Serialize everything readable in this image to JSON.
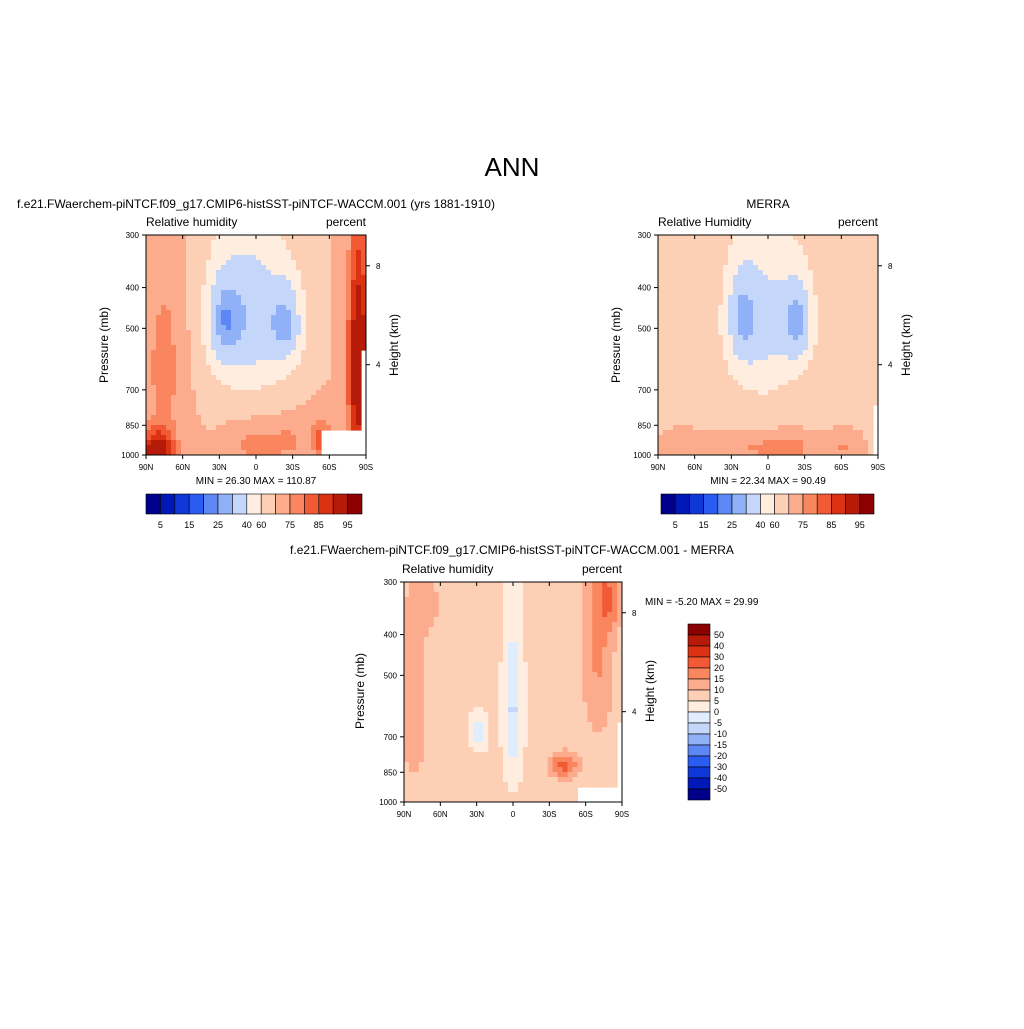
{
  "figure_title": "ANN",
  "palettes": {
    "rh": [
      "#00008b",
      "#0018b8",
      "#1038d8",
      "#2a5cf2",
      "#5c87f5",
      "#90b0f8",
      "#c4d7fb",
      "#ffeee0",
      "#fdcfb5",
      "#fcab8c",
      "#f9865e",
      "#f25a35",
      "#dc3214",
      "#b61a08",
      "#8b0000"
    ],
    "diff": [
      "#00008b",
      "#0018b8",
      "#1038d8",
      "#2a5cf2",
      "#5c87f5",
      "#90b0f8",
      "#c4d7fb",
      "#e0edfe",
      "#ffeee0",
      "#fdcfb5",
      "#fcab8c",
      "#f9865e",
      "#f25a35",
      "#dc3214",
      "#b61a08",
      "#8b0000"
    ]
  },
  "chart_data": [
    {
      "type": "heatmap",
      "id": "model",
      "title": "f.e21.FWaerchem-piNTCF.f09_g17.CMIP6-histSST-piNTCF-WACCM.001 (yrs 1881-1910)",
      "left_label": "Relative humidity",
      "right_label": "percent",
      "ylabel": "Pressure (mb)",
      "ylabel_right": "Height (km)",
      "x_ticks": [
        "90N",
        "60N",
        "30N",
        "0",
        "30S",
        "60S",
        "90S"
      ],
      "y_ticks": [
        "300",
        "400",
        "500",
        "700",
        "850",
        "1000"
      ],
      "y_right_ticks": [
        "8",
        "4"
      ],
      "xlim": [
        90,
        -90
      ],
      "ylim": [
        300,
        1000
      ],
      "stats": "MIN =  26.30  MAX = 110.87",
      "levels": [
        "5",
        "15",
        "25",
        "40",
        "60",
        "75",
        "85",
        "95"
      ],
      "features": {
        "base": 60,
        "blobs": [
          {
            "lat": 5,
            "p": 470,
            "slat": 32,
            "sp": 230,
            "a": -28
          },
          {
            "lat": 28,
            "p": 480,
            "slat": 14,
            "sp": 130,
            "a": -18
          },
          {
            "lat": -26,
            "p": 490,
            "slat": 14,
            "sp": 120,
            "a": -22
          },
          {
            "lat": 0,
            "p": 950,
            "slat": 22,
            "sp": 110,
            "a": 14
          },
          {
            "lat": -28,
            "p": 920,
            "slat": 14,
            "sp": 100,
            "a": 10
          },
          {
            "lat": 82,
            "p": 980,
            "slat": 18,
            "sp": 120,
            "a": 26
          },
          {
            "lat": 75,
            "p": 620,
            "slat": 16,
            "sp": 320,
            "a": 14
          },
          {
            "lat": -84,
            "p": 620,
            "slat": 10,
            "sp": 400,
            "a": 34
          },
          {
            "lat": -55,
            "p": 920,
            "slat": 12,
            "sp": 120,
            "a": 18
          }
        ],
        "mask": [
          {
            "lat0": -52,
            "lat1": -90,
            "p0": 880,
            "p1": 1000
          },
          {
            "lat0": -84,
            "lat1": -90,
            "p0": 560,
            "p1": 1000
          }
        ]
      }
    },
    {
      "type": "heatmap",
      "id": "obs",
      "title": "MERRA",
      "left_label": "Relative Humidity",
      "right_label": "percent",
      "ylabel": "Pressure (mb)",
      "ylabel_right": "Height (km)",
      "x_ticks": [
        "90N",
        "60N",
        "30N",
        "0",
        "30S",
        "60S",
        "90S"
      ],
      "y_ticks": [
        "300",
        "400",
        "500",
        "700",
        "850",
        "1000"
      ],
      "y_right_ticks": [
        "8",
        "4"
      ],
      "xlim": [
        90,
        -90
      ],
      "ylim": [
        300,
        1000
      ],
      "stats": "MIN =  22.34  MAX =  90.49",
      "levels": [
        "5",
        "15",
        "25",
        "40",
        "60",
        "75",
        "85",
        "95"
      ],
      "features": {
        "base": 58,
        "blobs": [
          {
            "lat": 5,
            "p": 480,
            "slat": 30,
            "sp": 230,
            "a": -22
          },
          {
            "lat": 22,
            "p": 470,
            "slat": 12,
            "sp": 120,
            "a": -16
          },
          {
            "lat": -25,
            "p": 480,
            "slat": 13,
            "sp": 120,
            "a": -24
          },
          {
            "lat": 0,
            "p": 960,
            "slat": 40,
            "sp": 80,
            "a": 14
          },
          {
            "lat": -22,
            "p": 960,
            "slat": 14,
            "sp": 70,
            "a": 6
          },
          {
            "lat": 70,
            "p": 960,
            "slat": 20,
            "sp": 80,
            "a": 10
          },
          {
            "lat": -62,
            "p": 960,
            "slat": 14,
            "sp": 80,
            "a": 12
          }
        ],
        "mask": [
          {
            "lat0": -85,
            "lat1": -90,
            "p0": 760,
            "p1": 1000
          }
        ]
      }
    },
    {
      "type": "heatmap",
      "id": "diff",
      "title": "f.e21.FWaerchem-piNTCF.f09_g17.CMIP6-histSST-piNTCF-WACCM.001 - MERRA",
      "left_label": "Relative humidity",
      "right_label": "percent",
      "ylabel": "Pressure (mb)",
      "ylabel_right": "Height (km)",
      "x_ticks": [
        "90N",
        "60N",
        "30N",
        "0",
        "30S",
        "60S",
        "90S"
      ],
      "y_ticks": [
        "300",
        "400",
        "500",
        "700",
        "850",
        "1000"
      ],
      "y_right_ticks": [
        "8",
        "4"
      ],
      "xlim": [
        90,
        -90
      ],
      "ylim": [
        300,
        1000
      ],
      "stats": "MIN =  -5.20  MAX =  29.99",
      "levels": [
        "50",
        "40",
        "30",
        "20",
        "15",
        "10",
        "5",
        "0",
        "-5",
        "-10",
        "-15",
        "-20",
        "-30",
        "-40",
        "-50"
      ],
      "features": {
        "base": 6,
        "blobs": [
          {
            "lat": 0,
            "p": 600,
            "slat": 7,
            "sp": 230,
            "a": -12
          },
          {
            "lat": 28,
            "p": 680,
            "slat": 6,
            "sp": 60,
            "a": -10
          },
          {
            "lat": -42,
            "p": 820,
            "slat": 12,
            "sp": 60,
            "a": 16
          },
          {
            "lat": -70,
            "p": 420,
            "slat": 14,
            "sp": 280,
            "a": 10
          },
          {
            "lat": -80,
            "p": 330,
            "slat": 10,
            "sp": 60,
            "a": 10
          },
          {
            "lat": 82,
            "p": 600,
            "slat": 12,
            "sp": 300,
            "a": 8
          },
          {
            "lat": 70,
            "p": 340,
            "slat": 16,
            "sp": 60,
            "a": 5
          }
        ],
        "mask": [
          {
            "lat0": -52,
            "lat1": -90,
            "p0": 930,
            "p1": 1000
          },
          {
            "lat0": -84,
            "lat1": -90,
            "p0": 650,
            "p1": 1000
          }
        ]
      }
    }
  ]
}
